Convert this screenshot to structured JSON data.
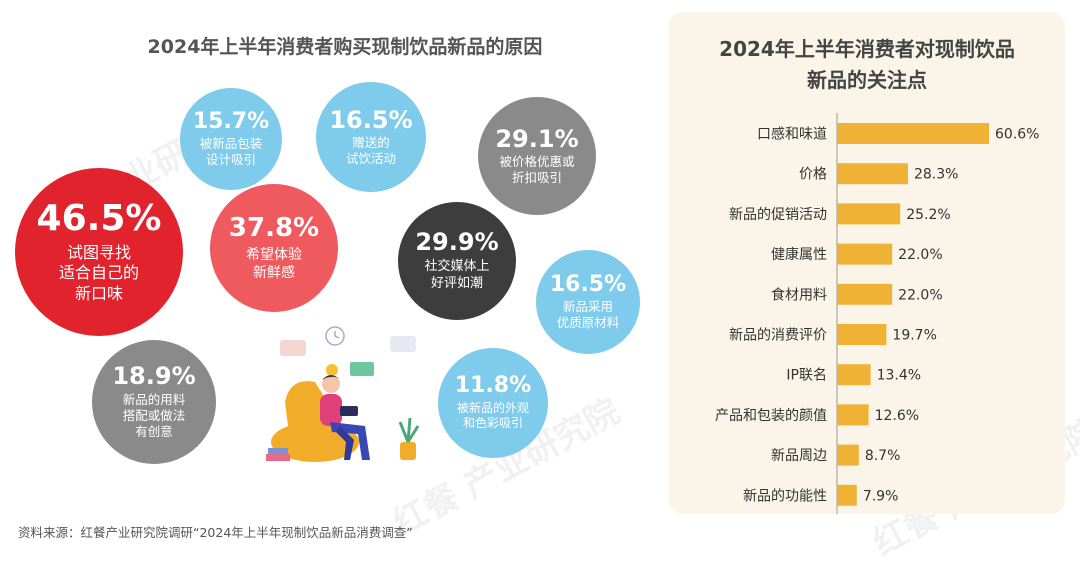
{
  "left_chart": {
    "title": "2024年上半年消费者购买现制饮品新品的原因",
    "bubbles": [
      {
        "value": "46.5%",
        "label": "试图寻找\n适合自己的\n新口味"
      },
      {
        "value": "37.8%",
        "label": "希望体验\n新鲜感"
      },
      {
        "value": "15.7%",
        "label": "被新品包装\n设计吸引"
      },
      {
        "value": "16.5%",
        "label": "赠送的\n试饮活动"
      },
      {
        "value": "29.1%",
        "label": "被价格优惠或\n折扣吸引"
      },
      {
        "value": "29.9%",
        "label": "社交媒体上\n好评如潮"
      },
      {
        "value": "16.5%",
        "label": "新品采用\n优质原材料"
      },
      {
        "value": "18.9%",
        "label": "新品的用料\n搭配或做法\n有创意"
      },
      {
        "value": "11.8%",
        "label": "被新品的外观\n和色彩吸引"
      }
    ]
  },
  "chart_data": {
    "type": "bar",
    "orientation": "horizontal",
    "title": "2024年上半年消费者对现制饮品\n新品的关注点",
    "categories": [
      "口感和味道",
      "价格",
      "新品的促销活动",
      "健康属性",
      "食材用料",
      "新品的消费评价",
      "IP联名",
      "产品和包装的颜值",
      "新品周边",
      "新品的功能性"
    ],
    "values": [
      60.6,
      28.3,
      25.2,
      22.0,
      22.0,
      19.7,
      13.4,
      12.6,
      8.7,
      7.9
    ],
    "value_labels": [
      "60.6%",
      "28.3%",
      "25.2%",
      "22.0%",
      "22.0%",
      "19.7%",
      "13.4%",
      "12.6%",
      "8.7%",
      "7.9%"
    ],
    "bar_color": "#f0b235",
    "xlim": [
      0,
      60.6
    ]
  },
  "footer": {
    "source": "资料来源：红餐产业研究院调研“2024年上半年现制饮品新品消费调查”"
  },
  "watermark": "红餐 产业研究院",
  "colors": {
    "red": "#e1232e",
    "pink": "#ef5a5f",
    "blue": "#7ecbeb",
    "grey": "#8a8a8a",
    "dark": "#3d3d3d",
    "panel": "#fbf5e9"
  }
}
